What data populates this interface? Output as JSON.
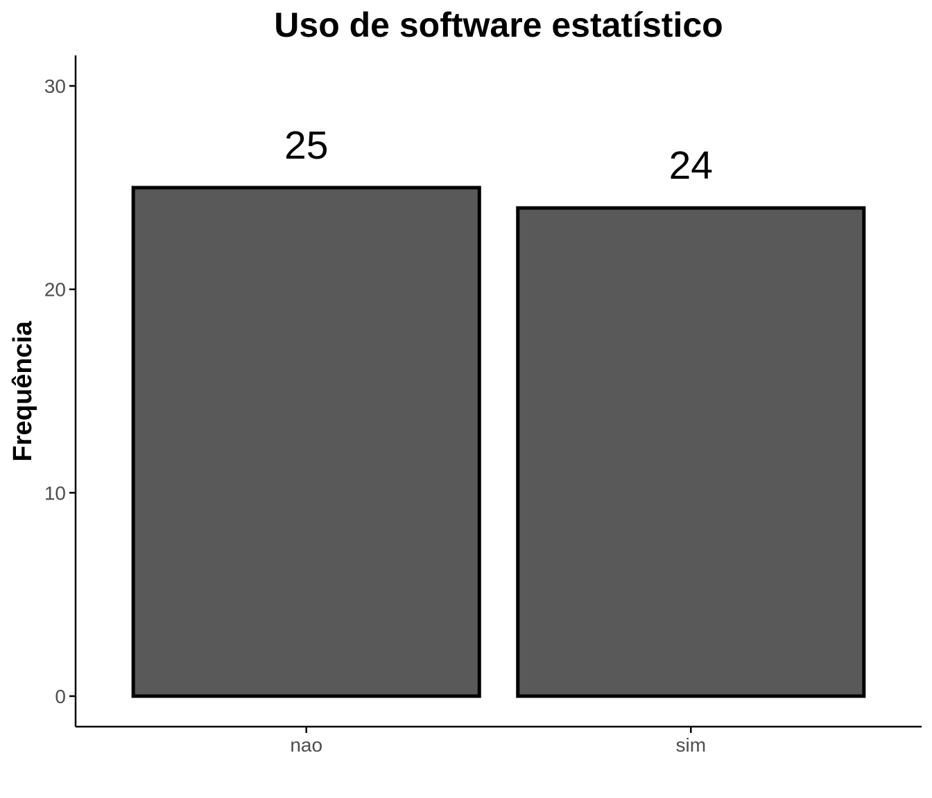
{
  "chart_data": {
    "type": "bar",
    "title": "Uso de software estatístico",
    "xlabel": "",
    "ylabel": "Frequência",
    "categories": [
      "nao",
      "sim"
    ],
    "values": [
      25,
      24
    ],
    "data_labels": [
      "25",
      "24"
    ],
    "yticks": [
      0,
      10,
      20,
      30
    ],
    "ytick_labels": [
      "0",
      "10",
      "20",
      "30"
    ],
    "ylim": [
      -1.5,
      31.5
    ],
    "grid": false,
    "legend": "none",
    "colors": {
      "bar_fill": "#595959",
      "bar_stroke": "#000000",
      "axis": "#000000",
      "tick_text": "#4d4d4d",
      "background": "#ffffff"
    }
  }
}
